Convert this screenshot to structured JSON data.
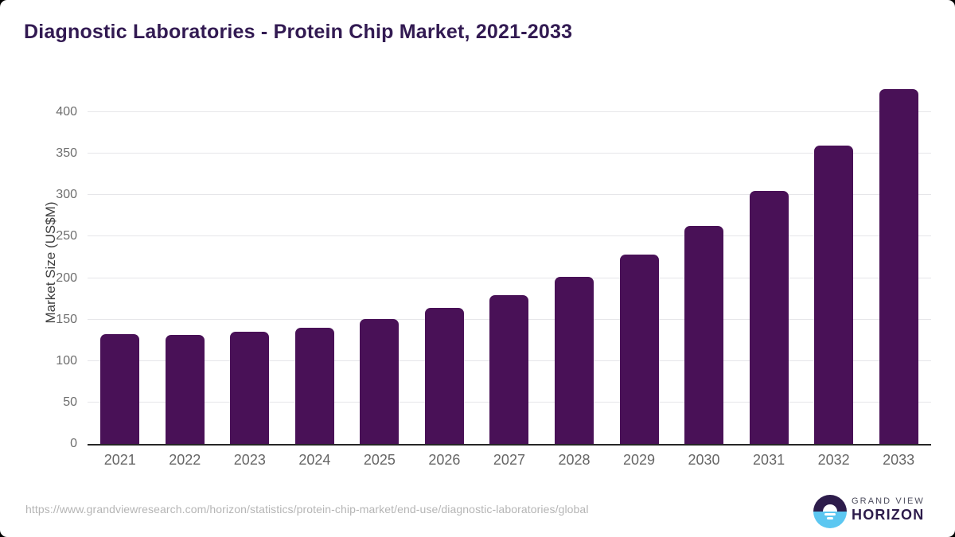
{
  "title": "Diagnostic Laboratories - Protein Chip Market, 2021-2033",
  "chart_data": {
    "type": "bar",
    "title": "Diagnostic Laboratories - Protein Chip Market, 2021-2033",
    "categories": [
      "2021",
      "2022",
      "2023",
      "2024",
      "2025",
      "2026",
      "2027",
      "2028",
      "2029",
      "2030",
      "2031",
      "2032",
      "2033"
    ],
    "values": [
      132.4,
      131.2,
      135.7,
      140.3,
      150.9,
      164.0,
      179.0,
      201.3,
      227.9,
      263.0,
      304.9,
      359.8,
      428.1
    ],
    "xlabel": "",
    "ylabel": "Market Size (US$M)",
    "ylim": [
      0,
      440
    ],
    "yticks": [
      0,
      50,
      100,
      150,
      200,
      250,
      300,
      350,
      400
    ],
    "grid": "horizontal",
    "legend": "none",
    "bar_color": "#491157"
  },
  "footer": {
    "source_url": "https://www.grandviewresearch.com/horizon/statistics/protein-chip-market/end-use/diagnostic-laboratories/global",
    "brand": {
      "line1": "GRAND VIEW",
      "line2": "HORIZON"
    }
  },
  "colors": {
    "bar": "#491157",
    "title": "#321a52",
    "axis_line": "#262626",
    "gridline": "#e6e6e9",
    "tick_label": "#6e6e6e",
    "url_text": "#b5b5b5",
    "logo_dark": "#2d1c4b",
    "logo_blue": "#5cc7f1",
    "background": "#ffffff"
  }
}
